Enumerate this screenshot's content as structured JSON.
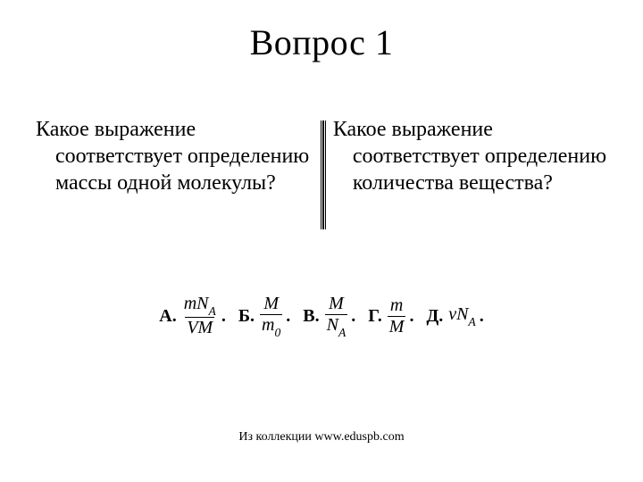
{
  "title": "Вопрос 1",
  "left_question": {
    "first": "Какое выражение",
    "rest": "соответствует определению массы одной молекулы?"
  },
  "right_question": {
    "first": "Какое выражение",
    "rest": "соответствует определению количества вещества?"
  },
  "options": {
    "a": {
      "label": "А.",
      "num_pre": "mN",
      "num_sub": "A",
      "den": "VM"
    },
    "b": {
      "label": "Б.",
      "num": "M",
      "den_pre": "m",
      "den_sub": "0"
    },
    "v": {
      "label": "В.",
      "num": "M",
      "den_pre": "N",
      "den_sub": "A"
    },
    "g": {
      "label": "Г.",
      "num": "m",
      "den": "M"
    },
    "d": {
      "label": "Д.",
      "expr_pre": "νN",
      "expr_sub": "A"
    }
  },
  "period": ".",
  "footer": "Из коллекции www.eduspb.com",
  "style": {
    "background": "#ffffff",
    "text_color": "#000000",
    "title_fontsize": 40,
    "body_fontsize": 24,
    "option_fontsize": 20,
    "footer_fontsize": 14
  }
}
